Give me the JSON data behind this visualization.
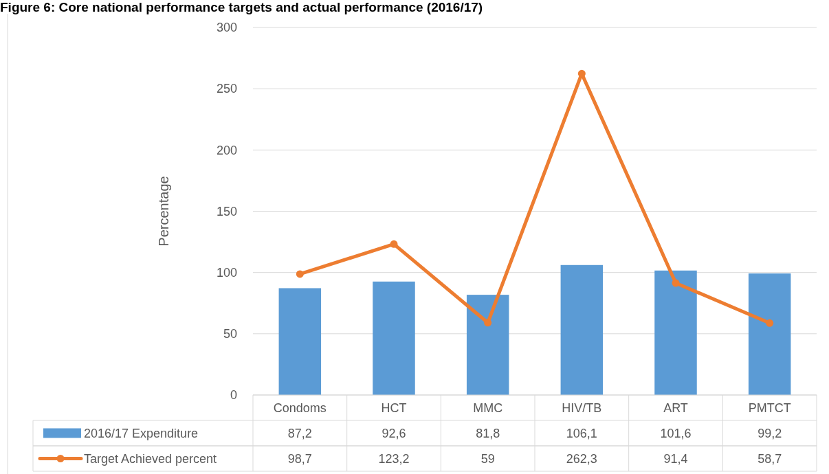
{
  "chart_data": {
    "type": "bar",
    "title": "Figure 6: Core national performance targets and actual performance (2016/17)",
    "ylabel": "Percentage",
    "categories": [
      "Condoms",
      "HCT",
      "MMC",
      "HIV/TB",
      "ART",
      "PMTCT"
    ],
    "series": [
      {
        "name": "2016/17 Expenditure",
        "color": "#5b9bd5",
        "values": [
          87.2,
          92.6,
          81.8,
          106.1,
          101.6,
          99.2
        ],
        "value_labels": [
          "87,2",
          "92,6",
          "81,8",
          "106,1",
          "101,6",
          "99,2"
        ]
      },
      {
        "name": "Target Achieved percent",
        "type": "line",
        "color": "#ed7d31",
        "marker": "circle",
        "values": [
          98.7,
          123.2,
          59,
          262.3,
          91.4,
          58.7
        ],
        "value_labels": [
          "98,7",
          "123,2",
          "59",
          "262,3",
          "91,4",
          "58,7"
        ]
      }
    ],
    "ylim": [
      0,
      300
    ],
    "yticks": [
      0,
      50,
      100,
      150,
      200,
      250,
      300
    ],
    "grid": "y",
    "legend": "bottom"
  }
}
